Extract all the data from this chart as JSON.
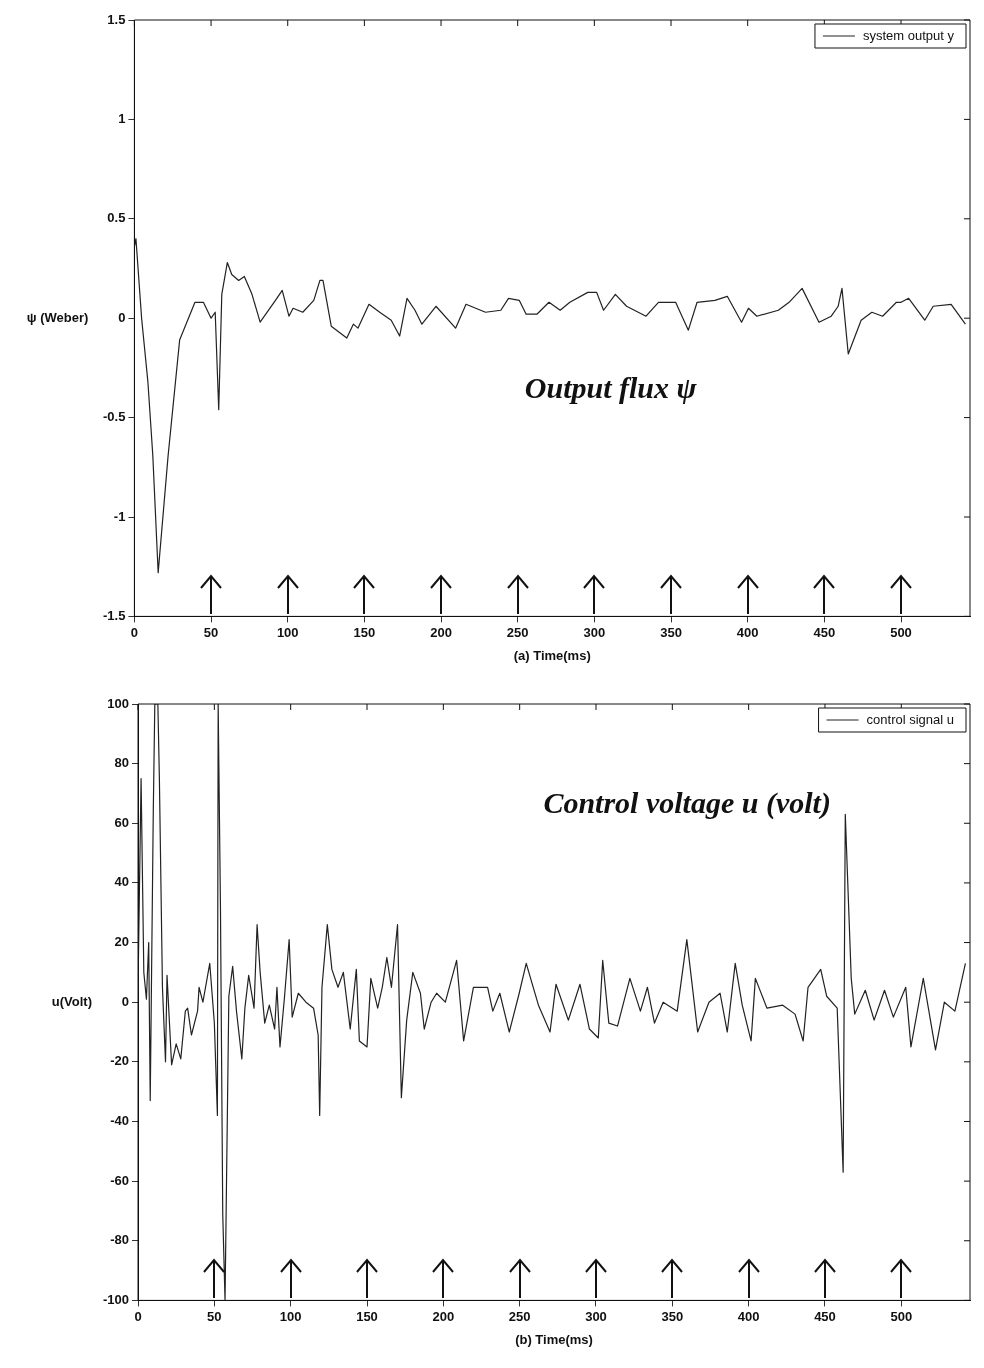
{
  "chart_data": [
    {
      "type": "line",
      "xlabel": "(a) Time(ms)",
      "ylabel": "ψ (Weber)",
      "xlim": [
        0,
        545
      ],
      "xticks": [
        0,
        50,
        100,
        150,
        200,
        250,
        300,
        350,
        400,
        450,
        500
      ],
      "ylim": [
        -1.5,
        1.5
      ],
      "yticks": [
        -1.5,
        -1,
        -0.5,
        0,
        0.5,
        1,
        1.5
      ],
      "grid": false,
      "legend": "top right",
      "marker": "none",
      "line_style": "solid",
      "annotations": [
        "Output flux ψ"
      ],
      "series": [
        {
          "name": "system output y",
          "color": "#222222",
          "x": [
            0,
            1,
            4.7,
            8.8,
            12,
            15.5,
            22,
            29.5,
            39.5,
            45,
            50,
            52.7,
            55,
            57,
            60.6,
            63.5,
            68,
            71.7,
            76.7,
            82,
            92,
            96.4,
            100.8,
            103.5,
            109.8,
            117,
            121,
            123,
            128.4,
            138.5,
            142.8,
            145.8,
            153,
            160,
            167.5,
            173,
            177.8,
            183,
            187.5,
            196.7,
            209.5,
            216.3,
            229,
            239,
            244,
            251,
            255.5,
            262.5,
            270.4,
            277.7,
            284,
            295.7,
            301.5,
            306,
            313.7,
            321,
            333.7,
            341.8,
            353,
            361.3,
            367,
            378.6,
            386.7,
            396,
            400.5,
            406,
            420,
            427,
            435.5,
            446.5,
            454.5,
            459,
            461.5,
            465.6,
            474,
            481,
            488,
            497,
            500,
            505,
            515.5,
            521,
            532.7,
            542
          ],
          "values": [
            0.36,
            0.4,
            0,
            -0.32,
            -0.69,
            -1.28,
            -0.69,
            -0.11,
            0.08,
            0.08,
            0,
            0.03,
            -0.46,
            0.12,
            0.28,
            0.22,
            0.19,
            0.21,
            0.12,
            -0.02,
            0.09,
            0.14,
            0.01,
            0.05,
            0.03,
            0.09,
            0.19,
            0.19,
            -0.04,
            -0.1,
            -0.03,
            -0.05,
            0.07,
            0.03,
            -0.01,
            -0.09,
            0.1,
            0.04,
            -0.03,
            0.06,
            -0.05,
            0.07,
            0.03,
            0.04,
            0.1,
            0.09,
            0.02,
            0.02,
            0.08,
            0.04,
            0.08,
            0.13,
            0.13,
            0.04,
            0.12,
            0.06,
            0.01,
            0.08,
            0.08,
            -0.06,
            0.08,
            0.09,
            0.11,
            -0.02,
            0.05,
            0.01,
            0.04,
            0.08,
            0.15,
            -0.02,
            0.01,
            0.06,
            0.15,
            -0.18,
            -0.01,
            0.03,
            0.01,
            0.08,
            0.08,
            0.1,
            -0.01,
            0.06,
            0.07,
            -0.03
          ]
        }
      ]
    },
    {
      "type": "line",
      "xlabel": "(b) Time(ms)",
      "ylabel": "u(Volt)",
      "xlim": [
        0,
        545
      ],
      "xticks": [
        0,
        50,
        100,
        150,
        200,
        250,
        300,
        350,
        400,
        450,
        500
      ],
      "ylim": [
        -100,
        100
      ],
      "yticks": [
        -100,
        -80,
        -60,
        -40,
        -20,
        0,
        20,
        40,
        60,
        80,
        100
      ],
      "grid": false,
      "legend": "top right",
      "marker": "none",
      "line_style": "solid",
      "annotations": [
        "Control voltage u (volt)"
      ],
      "series": [
        {
          "name": "control signal u",
          "color": "#222222",
          "x": [
            0,
            2,
            3.8,
            5.5,
            7,
            8,
            10,
            11,
            13,
            14,
            16,
            18,
            19,
            22,
            25,
            28,
            31,
            32.5,
            35,
            39,
            40,
            42.5,
            47,
            50,
            52,
            52.5,
            54,
            55.5,
            57,
            59.5,
            62,
            64.5,
            68,
            70,
            72.5,
            76,
            78,
            80,
            83,
            86,
            89.5,
            91,
            93,
            96,
            99,
            101,
            105,
            110,
            115,
            118,
            119,
            120.5,
            124,
            127,
            131,
            134.5,
            139,
            143,
            145,
            150,
            152.5,
            157,
            160,
            163,
            166,
            170,
            172.5,
            176,
            180,
            185,
            187.5,
            192,
            195.6,
            201.3,
            208.7,
            213.3,
            219.7,
            229,
            232.4,
            237,
            243.2,
            249.7,
            254.3,
            262.3,
            269.9,
            273.8,
            281.9,
            289.5,
            295.7,
            301.5,
            304.4,
            308.4,
            314.1,
            322.2,
            329.1,
            333.7,
            338.3,
            344,
            353.2,
            359.5,
            362.5,
            366.6,
            374,
            381.3,
            386,
            391.2,
            395.8,
            401.6,
            404.4,
            412,
            422.3,
            430.4,
            435.7,
            438.9,
            447.2,
            451.1,
            458,
            461.9,
            463.3,
            467.2,
            469.5,
            476.4,
            482.2,
            489,
            494.8,
            502.9,
            506.3,
            514.4,
            522.4,
            528.2,
            535.1,
            542
          ],
          "values": [
            5,
            75,
            10,
            1,
            20,
            -33,
            64,
            100,
            100,
            75,
            5,
            -20,
            9,
            -21,
            -14,
            -19,
            -3,
            -2,
            -11,
            -3,
            5,
            0,
            13,
            -7,
            -38,
            100,
            32,
            -71,
            -100,
            2,
            12,
            -3,
            -19,
            -2,
            9,
            -2,
            26,
            10,
            -7,
            -1,
            -9,
            5,
            -15,
            2,
            21,
            -5,
            3,
            0,
            -2,
            -11,
            -38,
            5,
            26,
            11,
            5,
            10,
            -9,
            11,
            -13,
            -15,
            8,
            -2,
            5,
            15,
            5,
            26,
            -32,
            -6,
            10,
            3,
            -9,
            0,
            3,
            0,
            14,
            -13,
            5,
            5,
            -3,
            3,
            -10,
            3,
            13,
            -1,
            -10,
            6,
            -6,
            6,
            -9,
            -12,
            14,
            -7,
            -8,
            8,
            -3,
            5,
            -7,
            0,
            -3,
            21,
            8,
            -10,
            0,
            3,
            -10,
            13,
            -1,
            -13,
            8,
            -2,
            -1,
            -4,
            -13,
            5,
            11,
            2,
            -2,
            -57,
            63,
            8,
            -4,
            4,
            -6,
            4,
            -5,
            5,
            -15,
            8,
            -16,
            0,
            -3,
            13
          ]
        }
      ]
    }
  ]
}
